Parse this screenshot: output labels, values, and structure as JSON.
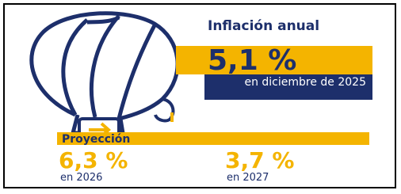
{
  "header": {
    "title": "Inflación anual"
  },
  "current": {
    "value": "5,1 %",
    "period": "en diciembre de 2025"
  },
  "projection": {
    "title": "Proyección",
    "items": [
      {
        "value": "6,3 %",
        "period": "en 2026"
      },
      {
        "value": "3,7 %",
        "period": "en 2027"
      }
    ]
  }
}
